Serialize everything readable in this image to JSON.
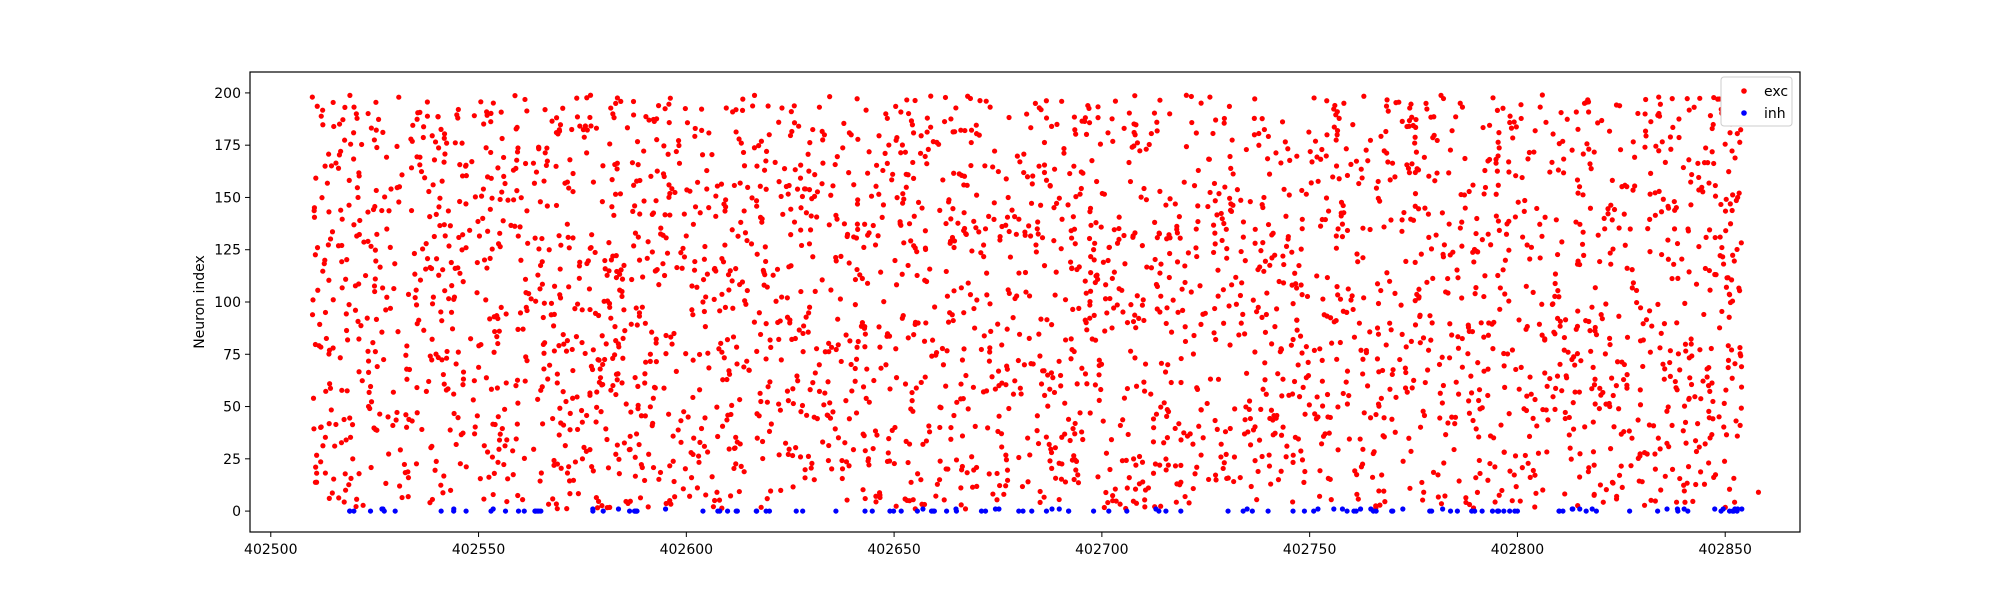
{
  "chart_data": {
    "type": "scatter",
    "title": "",
    "xlabel": "",
    "ylabel": "Neuron index",
    "xlim": [
      402495,
      402868
    ],
    "ylim": [
      -10,
      210
    ],
    "x_ticks": [
      402500,
      402550,
      402600,
      402650,
      402700,
      402750,
      402800,
      402850
    ],
    "x_tick_labels": [
      "402500",
      "402550",
      "402600",
      "402650",
      "402700",
      "402750",
      "402800",
      "402850"
    ],
    "y_ticks": [
      0,
      25,
      50,
      75,
      100,
      125,
      150,
      175,
      200
    ],
    "y_tick_labels": [
      "0",
      "25",
      "50",
      "75",
      "100",
      "125",
      "150",
      "175",
      "200"
    ],
    "grid": false,
    "legend_position": "top-right",
    "series": [
      {
        "name": "exc",
        "color": "#ff0000",
        "time_range": [
          402510,
          402858
        ],
        "neuron_range": [
          1,
          199
        ],
        "approx_spike_count": 3200,
        "points": [
          [
            402510,
            198
          ],
          [
            402512,
            40
          ],
          [
            402513,
            120
          ],
          [
            402515,
            78
          ],
          [
            402518,
            10
          ],
          [
            402521,
            150
          ],
          [
            402525,
            105
          ],
          [
            402531,
            12
          ],
          [
            402538,
            62
          ],
          [
            402545,
            188
          ],
          [
            402551,
            140
          ],
          [
            402559,
            60
          ],
          [
            402566,
            192
          ],
          [
            402575,
            25
          ],
          [
            402583,
            195
          ],
          [
            402596,
            5
          ],
          [
            402604,
            100
          ],
          [
            402617,
            165
          ],
          [
            402632,
            70
          ],
          [
            402648,
            190
          ],
          [
            402661,
            40
          ],
          [
            402672,
            135
          ],
          [
            402684,
            195
          ],
          [
            402696,
            110
          ],
          [
            402708,
            180
          ],
          [
            402716,
            22
          ],
          [
            402726,
            198
          ],
          [
            402739,
            150
          ],
          [
            402752,
            45
          ],
          [
            402763,
            102
          ],
          [
            402778,
            195
          ],
          [
            402791,
            18
          ],
          [
            402806,
            199
          ],
          [
            402821,
            135
          ],
          [
            402834,
            198
          ],
          [
            402846,
            60
          ],
          [
            402853,
            150
          ],
          [
            402858,
            9
          ]
        ]
      },
      {
        "name": "inh",
        "color": "#0000ff",
        "time_range": [
          402519,
          402854
        ],
        "neuron_range": [
          0,
          1
        ],
        "approx_spike_count": 140,
        "points": [
          [
            402520,
            0
          ],
          [
            402524,
            0
          ],
          [
            402527,
            1
          ],
          [
            402541,
            0
          ],
          [
            402547,
            0
          ],
          [
            402553,
            0
          ],
          [
            402561,
            0
          ],
          [
            402565,
            0
          ],
          [
            402580,
            0
          ],
          [
            402588,
            0
          ],
          [
            402595,
            1
          ],
          [
            402604,
            0
          ],
          [
            402612,
            0
          ],
          [
            402620,
            0
          ],
          [
            402628,
            0
          ],
          [
            402636,
            0
          ],
          [
            402643,
            0
          ],
          [
            402649,
            0
          ],
          [
            402659,
            0
          ],
          [
            402665,
            0
          ],
          [
            402672,
            0
          ],
          [
            402680,
            0
          ],
          [
            402688,
            1
          ],
          [
            402692,
            0
          ],
          [
            402698,
            0
          ],
          [
            402706,
            0
          ],
          [
            402713,
            1
          ],
          [
            402719,
            0
          ],
          [
            402734,
            0
          ],
          [
            402740,
            0
          ],
          [
            402746,
            0
          ],
          [
            402752,
            1
          ],
          [
            402759,
            0
          ],
          [
            402766,
            0
          ],
          [
            402770,
            0
          ],
          [
            402782,
            1
          ],
          [
            402789,
            0
          ],
          [
            402794,
            0
          ],
          [
            402800,
            0
          ],
          [
            402810,
            0
          ],
          [
            402815,
            1
          ],
          [
            402819,
            0
          ],
          [
            402827,
            0
          ],
          [
            402836,
            1
          ],
          [
            402841,
            0
          ],
          [
            402849,
            0
          ],
          [
            402853,
            1
          ],
          [
            402854,
            1
          ]
        ]
      }
    ]
  }
}
